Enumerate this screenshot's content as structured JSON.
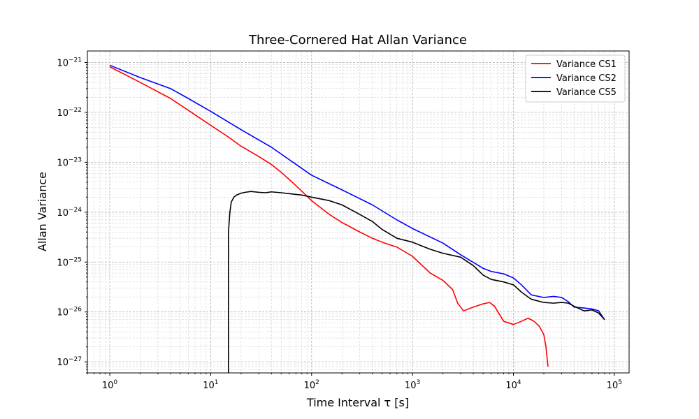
{
  "chart_data": {
    "type": "line",
    "title": "Three-Cornered Hat Allan Variance",
    "xlabel": "Time Interval τ [s]",
    "ylabel": "Allan Variance",
    "x_scale": "log",
    "y_scale": "log",
    "xlim": [
      0.6,
      140000.0
    ],
    "ylim": [
      6e-28,
      1.7e-21
    ],
    "grid": true,
    "legend_position": "top-right",
    "x_ticks": [
      {
        "base": "10",
        "exp": "0",
        "value": 1
      },
      {
        "base": "10",
        "exp": "1",
        "value": 10
      },
      {
        "base": "10",
        "exp": "2",
        "value": 100
      },
      {
        "base": "10",
        "exp": "3",
        "value": 1000
      },
      {
        "base": "10",
        "exp": "4",
        "value": 10000
      },
      {
        "base": "10",
        "exp": "5",
        "value": 100000
      }
    ],
    "y_ticks": [
      {
        "base": "10",
        "exp": "−27",
        "value": 1e-27
      },
      {
        "base": "10",
        "exp": "−26",
        "value": 1e-26
      },
      {
        "base": "10",
        "exp": "−25",
        "value": 1e-25
      },
      {
        "base": "10",
        "exp": "−24",
        "value": 1e-24
      },
      {
        "base": "10",
        "exp": "−23",
        "value": 1e-23
      },
      {
        "base": "10",
        "exp": "−22",
        "value": 1e-22
      },
      {
        "base": "10",
        "exp": "−21",
        "value": 1e-21
      }
    ],
    "series": [
      {
        "name": "Variance CS1",
        "color": "#ff0000",
        "x": [
          1,
          2,
          4,
          6,
          10,
          15,
          20,
          30,
          40,
          50,
          70,
          100,
          150,
          200,
          300,
          400,
          500,
          600,
          700,
          1000,
          1500,
          2000,
          2500,
          2800,
          3200,
          4000,
          5000,
          5800,
          6500,
          8000,
          10000,
          12000,
          14000,
          16000,
          18000,
          20000,
          21000,
          22000
        ],
        "y": [
          8.2e-22,
          4e-22,
          1.9e-22,
          1.1e-22,
          5.5e-23,
          3.2e-23,
          2.1e-23,
          1.3e-23,
          9e-24,
          6.3e-24,
          3.4e-24,
          1.7e-24,
          9e-25,
          6.2e-25,
          4e-25,
          3e-25,
          2.5e-25,
          2.2e-25,
          2e-25,
          1.3e-25,
          6e-26,
          4.3e-26,
          2.8e-26,
          1.5e-26,
          1.05e-26,
          1.25e-26,
          1.45e-26,
          1.55e-26,
          1.3e-26,
          6.5e-27,
          5.6e-27,
          6.5e-27,
          7.5e-27,
          6.5e-27,
          5.2e-27,
          3.5e-27,
          2e-27,
          8e-28
        ]
      },
      {
        "name": "Variance CS2",
        "color": "#0000ff",
        "x": [
          1,
          2,
          4,
          6,
          10,
          20,
          40,
          100,
          200,
          400,
          700,
          1000,
          2000,
          3000,
          5000,
          6000,
          8000,
          10000,
          12000,
          15000,
          20000,
          25000,
          30000,
          35000,
          40000,
          50000,
          60000,
          70000,
          80000
        ],
        "y": [
          8.8e-22,
          5e-22,
          3e-22,
          1.9e-22,
          1.05e-22,
          4.5e-23,
          2e-23,
          5.5e-24,
          2.8e-24,
          1.4e-24,
          7e-25,
          4.7e-25,
          2.4e-25,
          1.4e-25,
          7.5e-26,
          6.5e-26,
          5.8e-26,
          4.8e-26,
          3.5e-26,
          2.2e-26,
          1.95e-26,
          2.05e-26,
          1.95e-26,
          1.6e-26,
          1.25e-26,
          1.2e-26,
          1.15e-26,
          1.05e-26,
          7e-27
        ]
      },
      {
        "name": "Variance CS5",
        "color": "#000000",
        "x": [
          15,
          15,
          15.5,
          16,
          17,
          18,
          20,
          22,
          25,
          30,
          35,
          40,
          50,
          60,
          80,
          100,
          150,
          200,
          300,
          400,
          500,
          700,
          1000,
          1500,
          2000,
          3000,
          4000,
          5000,
          6000,
          8000,
          10000,
          12000,
          15000,
          20000,
          25000,
          30000,
          35000,
          40000,
          50000,
          60000,
          70000,
          80000
        ],
        "y": [
          6e-28,
          4e-25,
          1e-24,
          1.6e-24,
          2e-24,
          2.2e-24,
          2.4e-24,
          2.5e-24,
          2.6e-24,
          2.5e-24,
          2.45e-24,
          2.55e-24,
          2.45e-24,
          2.35e-24,
          2.2e-24,
          2e-24,
          1.7e-24,
          1.4e-24,
          9e-25,
          6.5e-25,
          4.5e-25,
          3e-25,
          2.5e-25,
          1.8e-25,
          1.5e-25,
          1.25e-25,
          8.5e-26,
          5.5e-26,
          4.5e-26,
          4e-26,
          3.5e-26,
          2.5e-26,
          1.8e-26,
          1.55e-26,
          1.5e-26,
          1.55e-26,
          1.5e-26,
          1.3e-26,
          1.05e-26,
          1.1e-26,
          9.5e-27,
          7e-27
        ]
      }
    ]
  }
}
